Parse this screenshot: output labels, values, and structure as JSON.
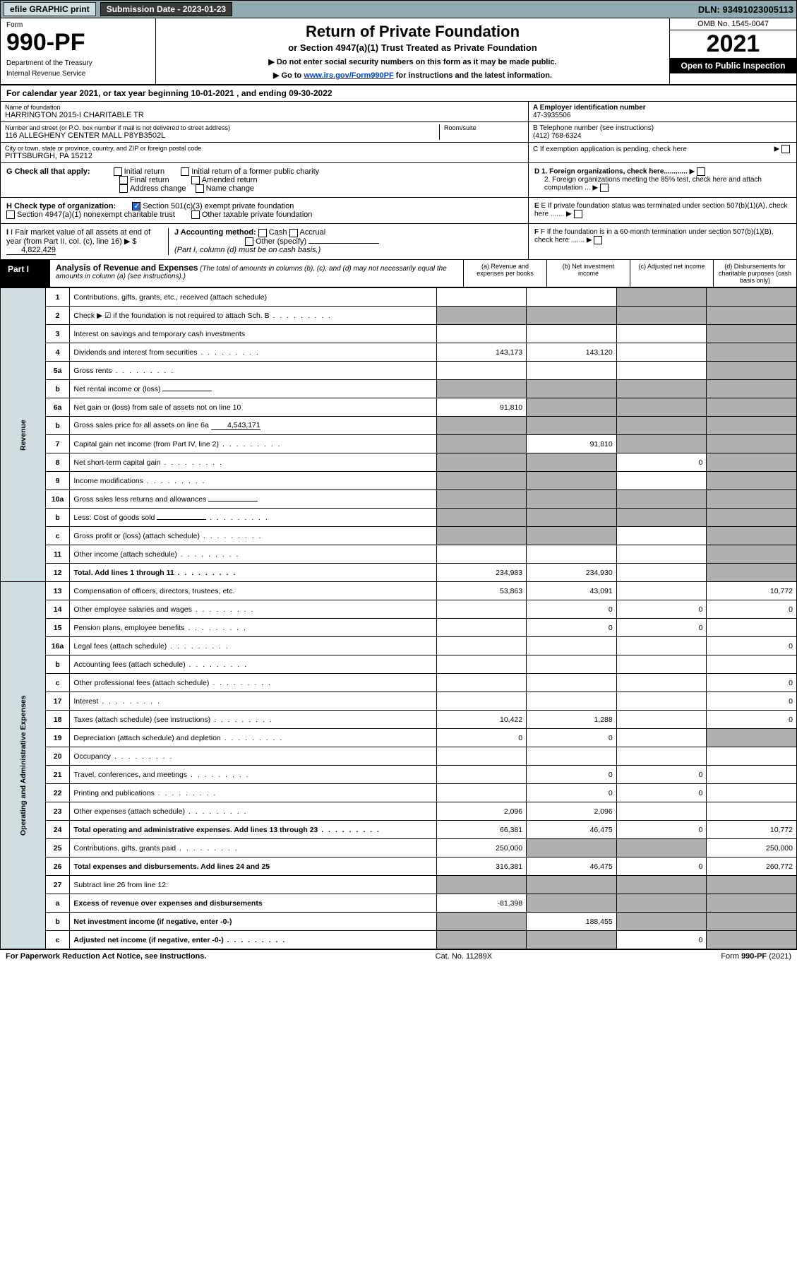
{
  "topbar": {
    "efile": "efile GRAPHIC print",
    "subdate": "Submission Date - 2023-01-23",
    "dln": "DLN: 93491023005113"
  },
  "header": {
    "form_label": "Form",
    "form_number": "990-PF",
    "dept1": "Department of the Treasury",
    "dept2": "Internal Revenue Service",
    "title": "Return of Private Foundation",
    "subtitle": "or Section 4947(a)(1) Trust Treated as Private Foundation",
    "instr1": "▶ Do not enter social security numbers on this form as it may be made public.",
    "instr2_pre": "▶ Go to ",
    "instr2_link": "www.irs.gov/Form990PF",
    "instr2_post": " for instructions and the latest information.",
    "omb": "OMB No. 1545-0047",
    "year": "2021",
    "open": "Open to Public Inspection"
  },
  "cal_year": "For calendar year 2021, or tax year beginning 10-01-2021            , and ending 09-30-2022",
  "info": {
    "name_label": "Name of foundation",
    "name": "HARRINGTON 2015-I CHARITABLE TR",
    "addr_label": "Number and street (or P.O. box number if mail is not delivered to street address)",
    "addr": "116 ALLEGHENY CENTER MALL P8YB3502L",
    "room_label": "Room/suite",
    "city_label": "City or town, state or province, country, and ZIP or foreign postal code",
    "city": "PITTSBURGH, PA  15212",
    "a_label": "A Employer identification number",
    "a_val": "47-3935506",
    "b_label": "B Telephone number (see instructions)",
    "b_val": "(412) 768-6324",
    "c_label": "C If exemption application is pending, check here"
  },
  "g": {
    "label": "G Check all that apply:",
    "opts": [
      "Initial return",
      "Initial return of a former public charity",
      "Final return",
      "Amended return",
      "Address change",
      "Name change"
    ]
  },
  "h": {
    "label": "H Check type of organization:",
    "opt1": "Section 501(c)(3) exempt private foundation",
    "opt2": "Section 4947(a)(1) nonexempt charitable trust",
    "opt3": "Other taxable private foundation"
  },
  "i": {
    "label": "I Fair market value of all assets at end of year (from Part II, col. (c), line 16)",
    "val": "4,822,429"
  },
  "j": {
    "label": "J Accounting method:",
    "cash": "Cash",
    "accrual": "Accrual",
    "other": "Other (specify)",
    "note": "(Part I, column (d) must be on cash basis.)"
  },
  "d": {
    "d1": "D 1. Foreign organizations, check here............",
    "d2": "2. Foreign organizations meeting the 85% test, check here and attach computation ..."
  },
  "e": "E  If private foundation status was terminated under section 507(b)(1)(A), check here .......",
  "f": "F  If the foundation is in a 60-month termination under section 507(b)(1)(B), check here .......",
  "part1": {
    "label": "Part I",
    "title": "Analysis of Revenue and Expenses",
    "note": "(The total of amounts in columns (b), (c), and (d) may not necessarily equal the amounts in column (a) (see instructions).)",
    "cols": [
      "(a)  Revenue and expenses per books",
      "(b)  Net investment income",
      "(c)  Adjusted net income",
      "(d)  Disbursements for charitable purposes (cash basis only)"
    ]
  },
  "side": {
    "revenue": "Revenue",
    "expenses": "Operating and Administrative Expenses"
  },
  "rows": [
    {
      "n": "1",
      "d": "Contributions, gifts, grants, etc., received (attach schedule)",
      "a": "",
      "b": "",
      "c": "s",
      "dd": "s"
    },
    {
      "n": "2",
      "d": "Check ▶ ☑ if the foundation is not required to attach Sch. B",
      "dots": true,
      "a": "s",
      "b": "s",
      "c": "s",
      "dd": "s"
    },
    {
      "n": "3",
      "d": "Interest on savings and temporary cash investments",
      "a": "",
      "b": "",
      "c": "",
      "dd": "s"
    },
    {
      "n": "4",
      "d": "Dividends and interest from securities",
      "dots": true,
      "a": "143,173",
      "b": "143,120",
      "c": "",
      "dd": "s"
    },
    {
      "n": "5a",
      "d": "Gross rents",
      "dots": true,
      "a": "",
      "b": "",
      "c": "",
      "dd": "s"
    },
    {
      "n": "b",
      "d": "Net rental income or (loss)",
      "inline": "",
      "a": "s",
      "b": "s",
      "c": "s",
      "dd": "s"
    },
    {
      "n": "6a",
      "d": "Net gain or (loss) from sale of assets not on line 10",
      "a": "91,810",
      "b": "s",
      "c": "s",
      "dd": "s"
    },
    {
      "n": "b",
      "d": "Gross sales price for all assets on line 6a",
      "inline": "4,543,171",
      "a": "s",
      "b": "s",
      "c": "s",
      "dd": "s"
    },
    {
      "n": "7",
      "d": "Capital gain net income (from Part IV, line 2)",
      "dots": true,
      "a": "s",
      "b": "91,810",
      "c": "s",
      "dd": "s"
    },
    {
      "n": "8",
      "d": "Net short-term capital gain",
      "dots": true,
      "a": "s",
      "b": "s",
      "c": "0",
      "dd": "s"
    },
    {
      "n": "9",
      "d": "Income modifications",
      "dots": true,
      "a": "s",
      "b": "s",
      "c": "",
      "dd": "s"
    },
    {
      "n": "10a",
      "d": "Gross sales less returns and allowances",
      "inline": "",
      "a": "s",
      "b": "s",
      "c": "s",
      "dd": "s"
    },
    {
      "n": "b",
      "d": "Less: Cost of goods sold",
      "dots": true,
      "inline": "",
      "a": "s",
      "b": "s",
      "c": "s",
      "dd": "s"
    },
    {
      "n": "c",
      "d": "Gross profit or (loss) (attach schedule)",
      "dots": true,
      "a": "s",
      "b": "s",
      "c": "",
      "dd": "s"
    },
    {
      "n": "11",
      "d": "Other income (attach schedule)",
      "dots": true,
      "a": "",
      "b": "",
      "c": "",
      "dd": "s"
    },
    {
      "n": "12",
      "d": "Total. Add lines 1 through 11",
      "dots": true,
      "bold": true,
      "a": "234,983",
      "b": "234,930",
      "c": "",
      "dd": "s"
    },
    {
      "n": "13",
      "d": "Compensation of officers, directors, trustees, etc.",
      "a": "53,863",
      "b": "43,091",
      "c": "",
      "dd": "10,772"
    },
    {
      "n": "14",
      "d": "Other employee salaries and wages",
      "dots": true,
      "a": "",
      "b": "0",
      "c": "0",
      "dd": "0"
    },
    {
      "n": "15",
      "d": "Pension plans, employee benefits",
      "dots": true,
      "a": "",
      "b": "0",
      "c": "0",
      "dd": ""
    },
    {
      "n": "16a",
      "d": "Legal fees (attach schedule)",
      "dots": true,
      "a": "",
      "b": "",
      "c": "",
      "dd": "0"
    },
    {
      "n": "b",
      "d": "Accounting fees (attach schedule)",
      "dots": true,
      "a": "",
      "b": "",
      "c": "",
      "dd": ""
    },
    {
      "n": "c",
      "d": "Other professional fees (attach schedule)",
      "dots": true,
      "a": "",
      "b": "",
      "c": "",
      "dd": "0"
    },
    {
      "n": "17",
      "d": "Interest",
      "dots": true,
      "a": "",
      "b": "",
      "c": "",
      "dd": "0"
    },
    {
      "n": "18",
      "d": "Taxes (attach schedule) (see instructions)",
      "dots": true,
      "a": "10,422",
      "b": "1,288",
      "c": "",
      "dd": "0"
    },
    {
      "n": "19",
      "d": "Depreciation (attach schedule) and depletion",
      "dots": true,
      "a": "0",
      "b": "0",
      "c": "",
      "dd": "s"
    },
    {
      "n": "20",
      "d": "Occupancy",
      "dots": true,
      "a": "",
      "b": "",
      "c": "",
      "dd": ""
    },
    {
      "n": "21",
      "d": "Travel, conferences, and meetings",
      "dots": true,
      "a": "",
      "b": "0",
      "c": "0",
      "dd": ""
    },
    {
      "n": "22",
      "d": "Printing and publications",
      "dots": true,
      "a": "",
      "b": "0",
      "c": "0",
      "dd": ""
    },
    {
      "n": "23",
      "d": "Other expenses (attach schedule)",
      "dots": true,
      "a": "2,096",
      "b": "2,096",
      "c": "",
      "dd": ""
    },
    {
      "n": "24",
      "d": "Total operating and administrative expenses. Add lines 13 through 23",
      "dots": true,
      "bold": true,
      "a": "66,381",
      "b": "46,475",
      "c": "0",
      "dd": "10,772"
    },
    {
      "n": "25",
      "d": "Contributions, gifts, grants paid",
      "dots": true,
      "a": "250,000",
      "b": "s",
      "c": "s",
      "dd": "250,000"
    },
    {
      "n": "26",
      "d": "Total expenses and disbursements. Add lines 24 and 25",
      "bold": true,
      "a": "316,381",
      "b": "46,475",
      "c": "0",
      "dd": "260,772"
    },
    {
      "n": "27",
      "d": "Subtract line 26 from line 12:",
      "a": "s",
      "b": "s",
      "c": "s",
      "dd": "s"
    },
    {
      "n": "a",
      "d": "Excess of revenue over expenses and disbursements",
      "bold": true,
      "a": "-81,398",
      "b": "s",
      "c": "s",
      "dd": "s"
    },
    {
      "n": "b",
      "d": "Net investment income (if negative, enter -0-)",
      "bold": true,
      "a": "s",
      "b": "188,455",
      "c": "s",
      "dd": "s"
    },
    {
      "n": "c",
      "d": "Adjusted net income (if negative, enter -0-)",
      "dots": true,
      "bold": true,
      "a": "s",
      "b": "s",
      "c": "0",
      "dd": "s"
    }
  ],
  "footer": {
    "left": "For Paperwork Reduction Act Notice, see instructions.",
    "mid": "Cat. No. 11289X",
    "right": "Form 990-PF (2021)"
  }
}
